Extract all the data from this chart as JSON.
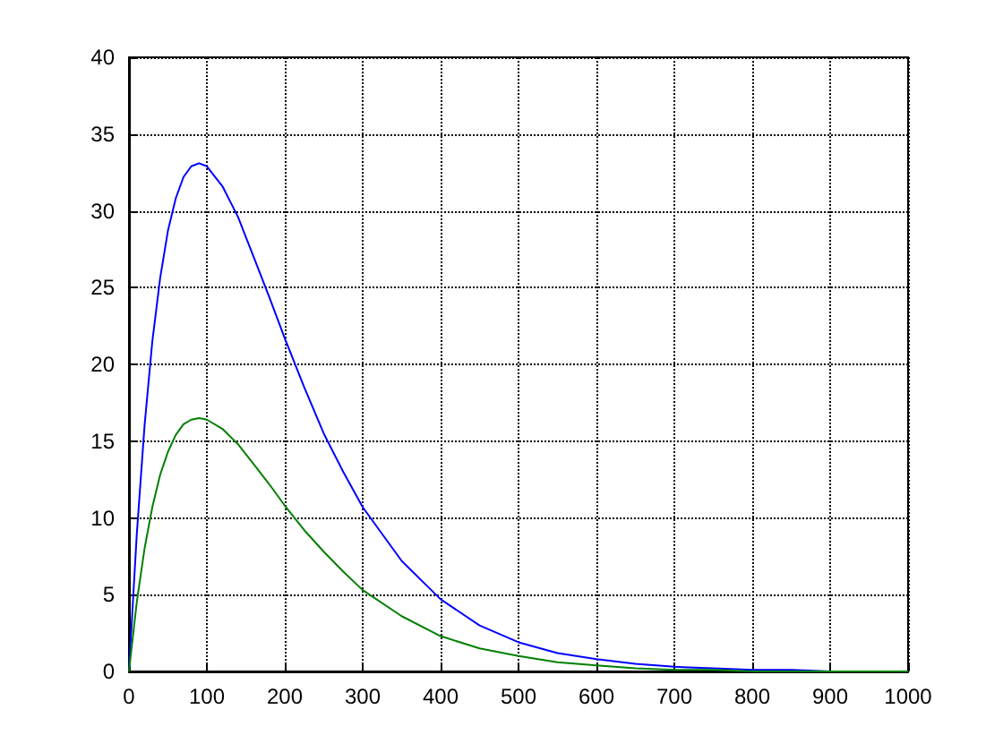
{
  "chart_data": {
    "type": "line",
    "x": [
      0,
      10,
      20,
      30,
      40,
      50,
      60,
      70,
      80,
      90,
      100,
      120,
      140,
      160,
      180,
      200,
      225,
      250,
      275,
      300,
      350,
      400,
      450,
      500,
      550,
      600,
      650,
      700,
      750,
      800,
      850,
      900,
      950,
      1000
    ],
    "series": [
      {
        "color": "#0000ff",
        "values": [
          0,
          8.9,
          16.0,
          21.5,
          25.6,
          28.7,
          30.8,
          32.2,
          32.9,
          33.1,
          32.9,
          31.6,
          29.6,
          27.0,
          24.4,
          21.7,
          18.5,
          15.5,
          13.0,
          10.7,
          7.2,
          4.7,
          3.0,
          1.9,
          1.2,
          0.8,
          0.5,
          0.3,
          0.2,
          0.1,
          0.1,
          0,
          0,
          0
        ]
      },
      {
        "color": "#008000",
        "values": [
          0,
          4.5,
          8.0,
          10.7,
          12.8,
          14.3,
          15.4,
          16.1,
          16.4,
          16.5,
          16.4,
          15.8,
          14.8,
          13.5,
          12.2,
          10.8,
          9.2,
          7.8,
          6.5,
          5.3,
          3.6,
          2.3,
          1.5,
          1.0,
          0.6,
          0.4,
          0.2,
          0.1,
          0.1,
          0,
          0,
          0,
          0,
          0
        ]
      }
    ],
    "xlim": [
      0,
      1000
    ],
    "xticks": [
      0,
      100,
      200,
      300,
      400,
      500,
      600,
      700,
      800,
      900,
      1000
    ],
    "ylim": [
      0,
      40
    ],
    "yticks": [
      0,
      5,
      10,
      15,
      20,
      25,
      30,
      35,
      40
    ],
    "grid": true,
    "marker": "none",
    "line_style": "solid"
  }
}
